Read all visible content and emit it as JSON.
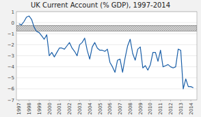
{
  "chart_data": {
    "type": "line",
    "title": "UK Current Account (% GDP), 1997-2014",
    "color": "#1a5fa8",
    "grid": true,
    "band": [
      -0.75,
      -0.25
    ],
    "xlim": [
      1996.75,
      2014.6
    ],
    "xticks": [
      1997,
      1998,
      1999,
      2000,
      2001,
      2002,
      2003,
      2004,
      2005,
      2006,
      2007,
      2008,
      2009,
      2010,
      2011,
      2012,
      2013,
      2014
    ],
    "ylim": [
      -7.0,
      1.0
    ],
    "yticks": [
      1,
      0,
      -1,
      -2,
      -3,
      -4,
      -5,
      -6,
      -7
    ],
    "x": [
      1997,
      1997.25,
      1997.5,
      1997.75,
      1998,
      1998.25,
      1998.5,
      1998.75,
      1999,
      1999.25,
      1999.5,
      1999.75,
      2000,
      2000.25,
      2000.5,
      2000.75,
      2001,
      2001.25,
      2001.5,
      2001.75,
      2002,
      2002.25,
      2002.5,
      2002.75,
      2003,
      2003.25,
      2003.5,
      2003.75,
      2004,
      2004.25,
      2004.5,
      2004.75,
      2005,
      2005.25,
      2005.5,
      2005.75,
      2006,
      2006.25,
      2006.5,
      2006.75,
      2007,
      2007.25,
      2007.5,
      2007.75,
      2008,
      2008.25,
      2008.5,
      2008.75,
      2009,
      2009.25,
      2009.5,
      2009.75,
      2010,
      2010.25,
      2010.5,
      2010.75,
      2011,
      2011.25,
      2011.5,
      2011.75,
      2012,
      2012.25,
      2012.5,
      2012.75,
      2013,
      2013.25,
      2013.5,
      2013.75,
      2014,
      2014.25
    ],
    "values": [
      -0.1,
      -0.2,
      0.1,
      0.5,
      0.6,
      0.3,
      -0.4,
      -0.8,
      -0.9,
      -1.2,
      -1.5,
      -1.1,
      -3.0,
      -2.7,
      -3.1,
      -2.7,
      -2.3,
      -2.3,
      -2.4,
      -2.1,
      -1.8,
      -2.3,
      -2.6,
      -3.0,
      -2.0,
      -1.8,
      -1.4,
      -2.5,
      -3.3,
      -2.2,
      -1.8,
      -2.3,
      -2.5,
      -2.5,
      -2.6,
      -2.4,
      -3.6,
      -4.0,
      -4.5,
      -3.4,
      -3.3,
      -4.5,
      -3.2,
      -2.1,
      -1.5,
      -2.8,
      -3.4,
      -2.4,
      -2.2,
      -4.1,
      -3.9,
      -4.3,
      -3.8,
      -2.7,
      -2.7,
      -3.5,
      -2.5,
      -4.0,
      -3.9,
      -3.8,
      -4.0,
      -4.1,
      -4.0,
      -2.4,
      -2.5,
      -6.0,
      -5.1,
      -5.8,
      -5.8,
      -5.9
    ]
  }
}
